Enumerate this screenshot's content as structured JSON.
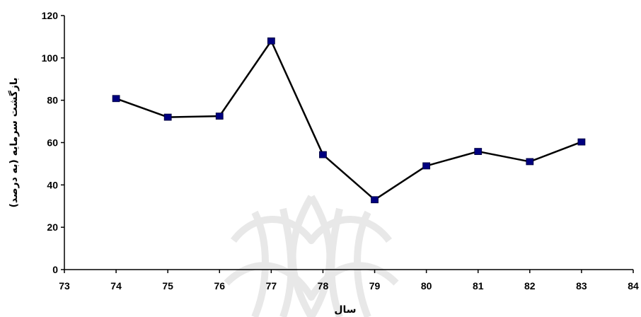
{
  "chart_data": {
    "type": "line",
    "title": "",
    "xlabel": "سال",
    "ylabel": "بازگشت سرمایه (به درصد)",
    "xlim": [
      73,
      84
    ],
    "ylim": [
      0,
      120
    ],
    "x_ticks": [
      "73",
      "74",
      "75",
      "76",
      "77",
      "78",
      "79",
      "80",
      "81",
      "82",
      "83",
      "84"
    ],
    "y_ticks": [
      "0",
      "20",
      "40",
      "60",
      "80",
      "100",
      "120"
    ],
    "grid": false,
    "legend": "none",
    "series": [
      {
        "x": [
          74,
          75,
          76,
          77,
          78,
          79,
          80,
          81,
          82,
          83
        ],
        "y": [
          80.8,
          72,
          72.5,
          108,
          54.3,
          33,
          49,
          55.8,
          51,
          60.3
        ],
        "line_color": "#000000",
        "marker_color": "#000080",
        "marker": "square"
      }
    ]
  }
}
